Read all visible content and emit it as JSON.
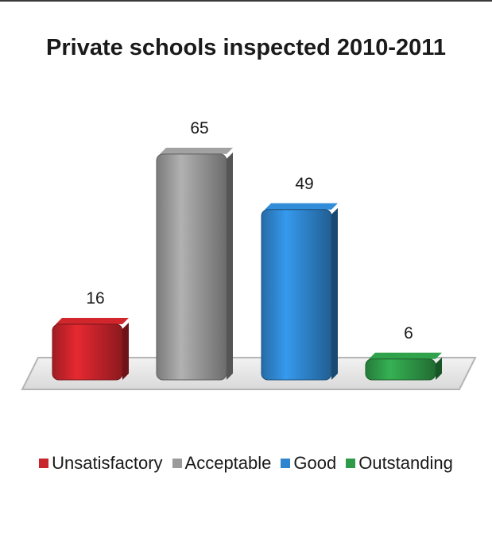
{
  "chart_data": {
    "type": "bar",
    "title": "Private schools inspected 2010-2011",
    "categories": [
      "Unsatisfactory",
      "Acceptable",
      "Good",
      "Outstanding"
    ],
    "values": [
      16,
      65,
      49,
      6
    ],
    "colors": [
      "#c8242b",
      "#9a9a9a",
      "#2f86cf",
      "#2f9a48"
    ],
    "legend_position": "bottom",
    "grid": false,
    "ylim": [
      0,
      70
    ]
  }
}
